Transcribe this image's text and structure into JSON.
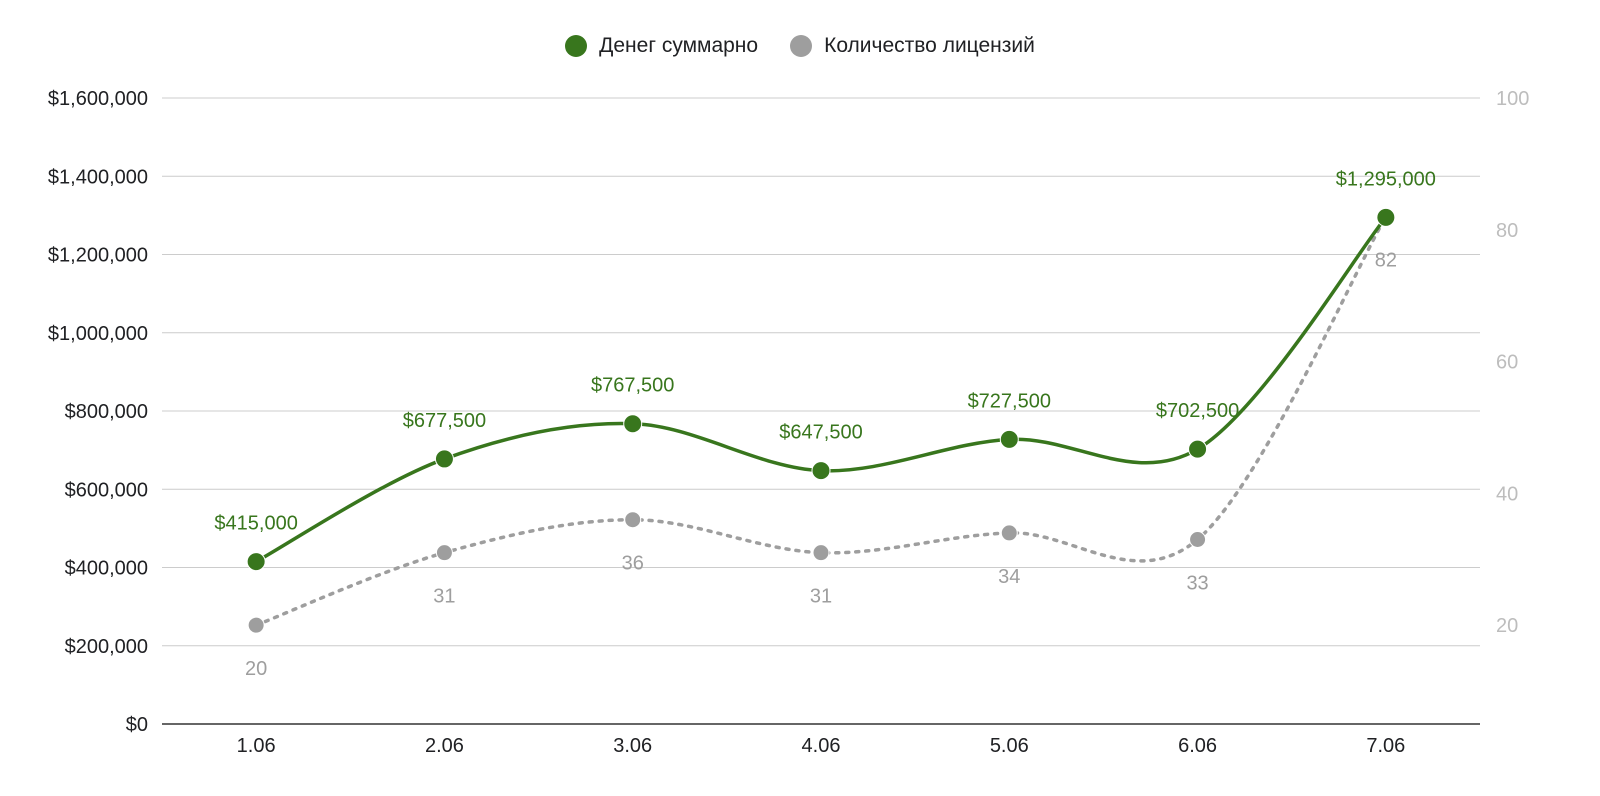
{
  "chart_data": {
    "type": "line",
    "categories": [
      "1.06",
      "2.06",
      "3.06",
      "4.06",
      "5.06",
      "6.06",
      "7.06"
    ],
    "series": [
      {
        "name": "Денег суммарно",
        "axis": "left",
        "color": "#38761d",
        "line_style": "solid",
        "values": [
          415000,
          677500,
          767500,
          647500,
          727500,
          702500,
          1295000
        ],
        "labels": [
          "$415,000",
          "$677,500",
          "$767,500",
          "$647,500",
          "$727,500",
          "$702,500",
          "$1,295,000"
        ]
      },
      {
        "name": "Количество лицензий",
        "axis": "right",
        "color": "#9e9e9e",
        "line_style": "dotted",
        "values": [
          20,
          31,
          36,
          31,
          34,
          33,
          82
        ],
        "labels": [
          "20",
          "31",
          "36",
          "31",
          "34",
          "33",
          "82"
        ]
      }
    ],
    "y_left": {
      "range": [
        0,
        1600000
      ],
      "ticks": [
        0,
        200000,
        400000,
        600000,
        800000,
        1000000,
        1200000,
        1400000,
        1600000
      ],
      "tick_labels": [
        "$0",
        "$200,000",
        "$400,000",
        "$600,000",
        "$800,000",
        "$1,000,000",
        "$1,200,000",
        "$1,400,000",
        "$1,600,000"
      ]
    },
    "y_right": {
      "range": [
        5,
        100
      ],
      "ticks": [
        20,
        40,
        60,
        80,
        100
      ],
      "tick_labels": [
        "20",
        "40",
        "60",
        "80",
        "100"
      ]
    },
    "legend": "top-center",
    "grid": true,
    "title": "",
    "xlabel": "",
    "ylabel": ""
  }
}
